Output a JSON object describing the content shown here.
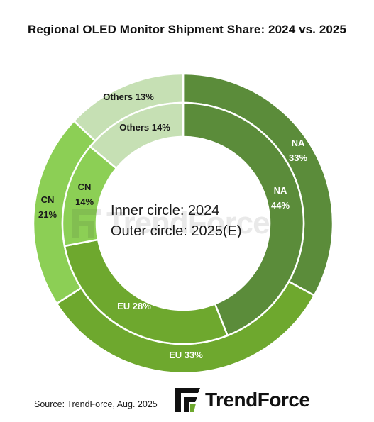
{
  "chart_data": {
    "type": "pie",
    "variant": "nested-donut",
    "title": "Regional OLED Monitor Shipment Share: 2024 vs. 2025",
    "center_text": [
      "Inner circle: 2024",
      "Outer circle: 2025(E)"
    ],
    "rings": [
      {
        "ring": "inner",
        "name": "2024",
        "slices": [
          {
            "label": "NA",
            "value": 44,
            "display": "44%",
            "color": "#5b8c3a"
          },
          {
            "label": "EU",
            "value": 28,
            "display": "EU 28%",
            "color": "#6ea82e"
          },
          {
            "label": "CN",
            "value": 14,
            "display": "14%",
            "color": "#8ccf55"
          },
          {
            "label": "Others",
            "value": 14,
            "display": "Others 14%",
            "color": "#c6e0b4"
          }
        ]
      },
      {
        "ring": "outer",
        "name": "2025(E)",
        "slices": [
          {
            "label": "NA",
            "value": 33,
            "display": "33%",
            "color": "#5b8c3a"
          },
          {
            "label": "EU",
            "value": 33,
            "display": "EU 33%",
            "color": "#6ea82e"
          },
          {
            "label": "CN",
            "value": 21,
            "display": "21%",
            "color": "#8ccf55"
          },
          {
            "label": "Others",
            "value": 13,
            "display": "Others 13%",
            "color": "#c6e0b4"
          }
        ]
      }
    ],
    "legend": "none"
  },
  "source": "Source: TrendForce, Aug. 2025",
  "logo_text": "TrendForce",
  "watermark_text": "TrendForce"
}
